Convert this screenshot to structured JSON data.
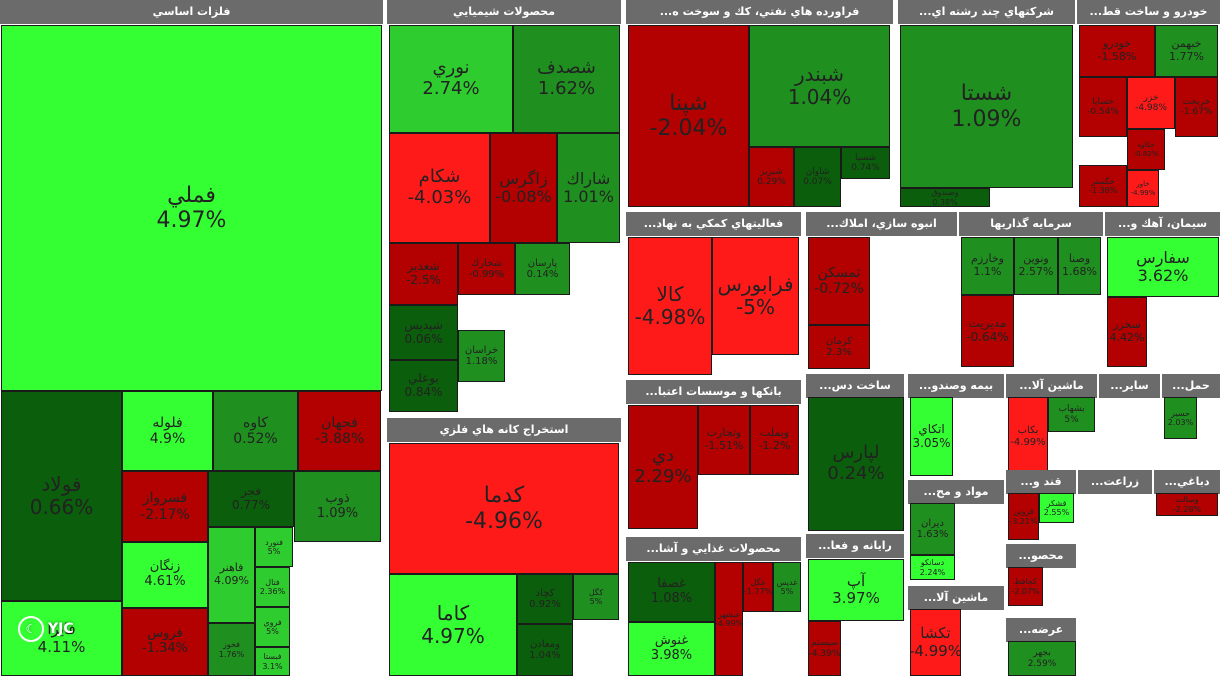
{
  "chart_data": {
    "type": "treemap",
    "title": "",
    "colors": {
      "up_strong": "#2ecc2e",
      "up_bright": "#33ff33",
      "up": "#1f8f1f",
      "up_dark": "#0b5e0b",
      "down": "#b30000",
      "down_strong": "#ff1a1a"
    },
    "sectors": [
      {
        "name": "فلزات اساسي",
        "tiles": [
          {
            "symbol": "فملي",
            "change": "4.97%"
          },
          {
            "symbol": "فولاد",
            "change": "0.66%"
          },
          {
            "symbol": "فلوله",
            "change": "4.9%"
          },
          {
            "symbol": "كاوه",
            "change": "0.52%"
          },
          {
            "symbol": "فجهان",
            "change": "-3.88%"
          },
          {
            "symbol": "فسرواز",
            "change": "-2.17%"
          },
          {
            "symbol": "فجر",
            "change": "0.77%"
          },
          {
            "symbol": "ذوب",
            "change": "1.09%"
          },
          {
            "symbol": "زنگان",
            "change": "4.61%"
          },
          {
            "symbol": "فاهنر",
            "change": "4.09%"
          },
          {
            "symbol": "فروس",
            "change": "-1.34%"
          },
          {
            "symbol": "فايرا",
            "change": "4.11%"
          },
          {
            "symbol": "فنورد",
            "change": "5%"
          },
          {
            "symbol": "فخوز",
            "change": "1.76%"
          },
          {
            "symbol": "فروي",
            "change": "5%"
          },
          {
            "symbol": "فتال",
            "change": "2.36%"
          },
          {
            "symbol": "فبستا",
            "change": "3.1%"
          }
        ]
      },
      {
        "name": "محصولات شيميايي",
        "tiles": [
          {
            "symbol": "نوري",
            "change": "2.74%"
          },
          {
            "symbol": "شصدف",
            "change": "1.62%"
          },
          {
            "symbol": "شكام",
            "change": "-4.03%"
          },
          {
            "symbol": "زاگرس",
            "change": "-0.08%"
          },
          {
            "symbol": "شاراك",
            "change": "1.01%"
          },
          {
            "symbol": "شغدير",
            "change": "-2.5%"
          },
          {
            "symbol": "شپديس",
            "change": "0.06%"
          },
          {
            "symbol": "بوعلي",
            "change": "0.84%"
          },
          {
            "symbol": "شخارك",
            "change": "-0.99%"
          },
          {
            "symbol": "پارسان",
            "change": "0.14%"
          },
          {
            "symbol": "خراسان",
            "change": "1.18%"
          }
        ]
      },
      {
        "name": "فراورده هاي نفتي، كك و سوخت ه...",
        "tiles": [
          {
            "symbol": "شپنا",
            "change": "-2.04%"
          },
          {
            "symbol": "شبندر",
            "change": "1.04%"
          },
          {
            "symbol": "شبريز",
            "change": "0.29%"
          },
          {
            "symbol": "شاوان",
            "change": "0.07%"
          },
          {
            "symbol": "شسپا",
            "change": "0.74%"
          }
        ]
      },
      {
        "name": "شركتهاي چند رشته اي...",
        "tiles": [
          {
            "symbol": "شستا",
            "change": "1.09%"
          },
          {
            "symbol": "وصندوق",
            "change": "0.38%"
          }
        ]
      },
      {
        "name": "خودرو و ساخت قط...",
        "tiles": [
          {
            "symbol": "خودرو",
            "change": "-1.58%"
          },
          {
            "symbol": "خبهمن",
            "change": "1.77%"
          },
          {
            "symbol": "خساپا",
            "change": "-0.54%"
          },
          {
            "symbol": "خزر",
            "change": "-4.98%"
          },
          {
            "symbol": "خريخت",
            "change": "-1.67%"
          },
          {
            "symbol": "خاور",
            "change": "-4.99%"
          },
          {
            "symbol": "خكاوه",
            "change": "-0.82%"
          },
          {
            "symbol": "خگستر",
            "change": "-1.38%"
          }
        ]
      },
      {
        "name": "استخراج كانه هاي فلزي",
        "tiles": [
          {
            "symbol": "كدما",
            "change": "-4.96%"
          },
          {
            "symbol": "كاما",
            "change": "4.97%"
          },
          {
            "symbol": "كچاد",
            "change": "0.92%"
          },
          {
            "symbol": "ومعادن",
            "change": "1.04%"
          },
          {
            "symbol": "كگل",
            "change": "5%"
          }
        ]
      },
      {
        "name": "فعاليتهاي كمكي به نهاد...",
        "tiles": [
          {
            "symbol": "كالا",
            "change": "-4.98%"
          },
          {
            "symbol": "فرابورس",
            "change": "-5%"
          }
        ]
      },
      {
        "name": "انبوه سازي، املاك...",
        "tiles": [
          {
            "symbol": "ثمسكن",
            "change": "-0.72%"
          },
          {
            "symbol": "كرمان",
            "change": "2.3%"
          }
        ]
      },
      {
        "name": "سرمايه گذاريها",
        "tiles": [
          {
            "symbol": "وخارزم",
            "change": "1.1%"
          },
          {
            "symbol": "ونوين",
            "change": "2.57%"
          },
          {
            "symbol": "وصنا",
            "change": "1.68%"
          },
          {
            "symbol": "مديريت",
            "change": "-0.64%"
          }
        ]
      },
      {
        "name": "سيمان، آهك و...",
        "tiles": [
          {
            "symbol": "سفارس",
            "change": "3.62%"
          },
          {
            "symbol": "سخزر",
            "change": "4.42%"
          }
        ]
      },
      {
        "name": "بانكها و موسسات اعتبا...",
        "tiles": [
          {
            "symbol": "دي",
            "change": "2.29%"
          },
          {
            "symbol": "وتجارت",
            "change": "-1.51%"
          },
          {
            "symbol": "وبملت",
            "change": "-1.2%"
          }
        ]
      },
      {
        "name": "ساخت دس...",
        "tiles": [
          {
            "symbol": "لپارس",
            "change": "0.24%"
          }
        ]
      },
      {
        "name": "بيمه وصندو...",
        "tiles": [
          {
            "symbol": "اتكاي",
            "change": "3.05%"
          }
        ]
      },
      {
        "name": "ماشين آلا...",
        "tiles": [
          {
            "symbol": "بكاب",
            "change": "-4.99%"
          },
          {
            "symbol": "بشهاب",
            "change": "5%"
          }
        ]
      },
      {
        "name": "ساير...",
        "tiles": []
      },
      {
        "name": "حمل...",
        "tiles": [
          {
            "symbol": "حسير",
            "change": "2.03%"
          }
        ]
      },
      {
        "name": "مواد و مح...",
        "tiles": [
          {
            "symbol": "ديران",
            "change": "1.63%"
          },
          {
            "symbol": "دسانكو",
            "change": "2.24%"
          }
        ]
      },
      {
        "name": "قند و...",
        "tiles": [
          {
            "symbol": "قشكر",
            "change": "2.55%"
          },
          {
            "symbol": "قزوين",
            "change": "-3.21%"
          }
        ]
      },
      {
        "name": "زراعت...",
        "tiles": []
      },
      {
        "name": "دباغي...",
        "tiles": [
          {
            "symbol": "وسالت",
            "change": "-2.28%"
          }
        ]
      },
      {
        "name": "محصولات غذايي و آشا...",
        "tiles": [
          {
            "symbol": "غصفا",
            "change": "1.08%"
          },
          {
            "symbol": "غنوش",
            "change": "3.98%"
          },
          {
            "symbol": "غبشهر",
            "change": "-4.99%"
          },
          {
            "symbol": "غگل",
            "change": "-1.77%"
          },
          {
            "symbol": "غديس",
            "change": "5%"
          }
        ]
      },
      {
        "name": "رايانه و فعا...",
        "tiles": [
          {
            "symbol": "آپ",
            "change": "3.97%"
          },
          {
            "symbol": "سيستم",
            "change": "-4.39%"
          }
        ]
      },
      {
        "name": "ماشين آلا...",
        "tiles": [
          {
            "symbol": "تكشا",
            "change": "-4.99%"
          }
        ]
      },
      {
        "name": "محصو...",
        "tiles": [
          {
            "symbol": "كحافظ",
            "change": "-2.07%"
          }
        ]
      },
      {
        "name": "عرضه...",
        "tiles": [
          {
            "symbol": "بجهر",
            "change": "2.59%"
          }
        ]
      }
    ]
  },
  "watermark": {
    "text": "YJC",
    "logo_icon": "yjc-logo-icon"
  }
}
